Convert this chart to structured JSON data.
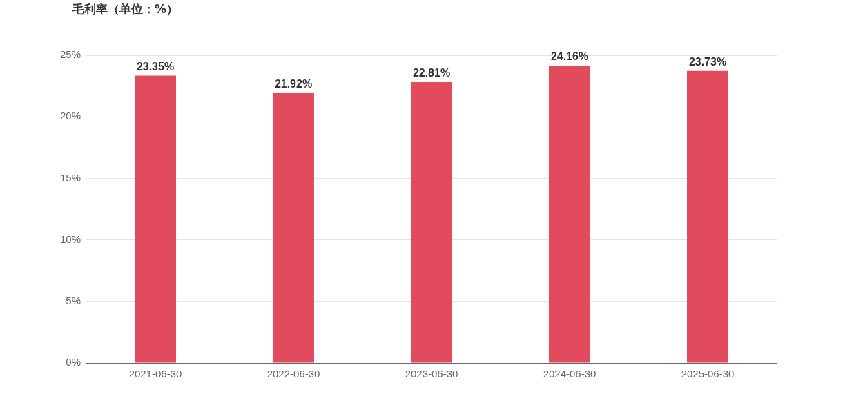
{
  "chart_data": {
    "type": "bar",
    "title": "毛利率（单位：%）",
    "categories": [
      "2021-06-30",
      "2022-06-30",
      "2023-06-30",
      "2024-06-30",
      "2025-06-30"
    ],
    "values": [
      23.35,
      21.92,
      22.81,
      24.16,
      23.73
    ],
    "value_labels": [
      "23.35%",
      "21.92%",
      "22.81%",
      "24.16%",
      "23.73%"
    ],
    "color": "#e24b5e",
    "ylim": [
      0,
      25
    ],
    "yticks": [
      {
        "value": 0,
        "label": "0%"
      },
      {
        "value": 5,
        "label": "5%"
      },
      {
        "value": 10,
        "label": "10%"
      },
      {
        "value": 15,
        "label": "15%"
      },
      {
        "value": 20,
        "label": "20%"
      },
      {
        "value": 25,
        "label": "25%"
      }
    ],
    "grid": "y",
    "legend": false
  }
}
